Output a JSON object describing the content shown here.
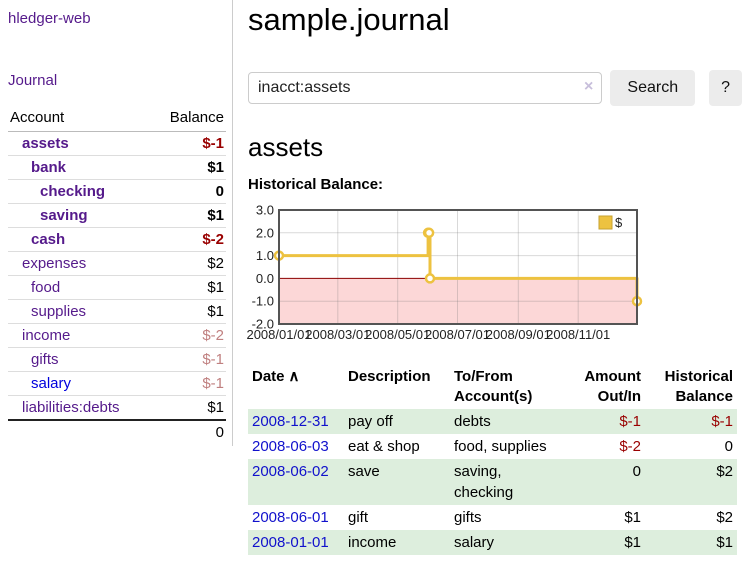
{
  "app": {
    "brand": "hledger-web",
    "nav_journal": "Journal"
  },
  "sidebar": {
    "headers": {
      "account": "Account",
      "balance": "Balance"
    },
    "accounts": [
      {
        "name": "assets",
        "balance": "$-1",
        "indent": 0,
        "bold": true,
        "unvisited": false
      },
      {
        "name": "bank",
        "balance": "$1",
        "indent": 1,
        "bold": true,
        "unvisited": false
      },
      {
        "name": "checking",
        "balance": "0",
        "indent": 2,
        "bold": true,
        "unvisited": false
      },
      {
        "name": "saving",
        "balance": "$1",
        "indent": 2,
        "bold": true,
        "unvisited": false
      },
      {
        "name": "cash",
        "balance": "$-2",
        "indent": 1,
        "bold": true,
        "unvisited": false
      },
      {
        "name": "expenses",
        "balance": "$2",
        "indent": 0,
        "bold": false,
        "unvisited": false
      },
      {
        "name": "food",
        "balance": "$1",
        "indent": 1,
        "bold": false,
        "unvisited": false
      },
      {
        "name": "supplies",
        "balance": "$1",
        "indent": 1,
        "bold": false,
        "unvisited": false
      },
      {
        "name": "income",
        "balance": "$-2",
        "indent": 0,
        "bold": false,
        "unvisited": false
      },
      {
        "name": "gifts",
        "balance": "$-1",
        "indent": 1,
        "bold": false,
        "unvisited": false
      },
      {
        "name": "salary",
        "balance": "$-1",
        "indent": 1,
        "bold": false,
        "unvisited": true
      },
      {
        "name": "liabilities:debts",
        "balance": "$1",
        "indent": 0,
        "bold": false,
        "unvisited": false
      }
    ],
    "total": "0"
  },
  "header": {
    "title": "sample.journal"
  },
  "search": {
    "value": "inacct:assets",
    "clear_icon": "×",
    "button_label": "Search",
    "help_label": "?"
  },
  "account_page": {
    "heading": "assets",
    "chart_label": "Historical Balance:"
  },
  "chart_data": {
    "type": "line",
    "step": true,
    "title": "Historical Balance:",
    "series": [
      {
        "name": "$",
        "color": "#edc240",
        "points": [
          [
            "2008-01-01",
            1
          ],
          [
            "2008-06-01",
            2
          ],
          [
            "2008-06-02",
            2
          ],
          [
            "2008-06-03",
            0
          ],
          [
            "2008-12-31",
            -1
          ]
        ]
      }
    ],
    "xlim": [
      "2008-01-01",
      "2008-12-31"
    ],
    "ylim": [
      -2,
      3
    ],
    "y_ticks": [
      "3.0",
      "2.0",
      "1.0",
      "0.0",
      "-1.0",
      "-2.0"
    ],
    "x_ticks": [
      {
        "pos": "2008-01-01",
        "label": "2008/01/01"
      },
      {
        "pos": "2008-03-01",
        "label": "2008/03/01"
      },
      {
        "pos": "2008-05-01",
        "label": "2008/05/01"
      },
      {
        "pos": "2008-07-01",
        "label": "2008/07/01"
      },
      {
        "pos": "2008-09-01",
        "label": "2008/09/01"
      },
      {
        "pos": "2008-11-01",
        "label": "2008/11/01"
      }
    ],
    "legend": {
      "position": "top-right",
      "label": "$"
    },
    "grid": true,
    "negative_region_color": "#fcd7d7",
    "zero_line_color": "#8b0000",
    "border_color": "#545454"
  },
  "register": {
    "headers": [
      "Date",
      "Description",
      "To/From Account(s)",
      "Amount Out/In",
      "Historical Balance"
    ],
    "sort_icon": "∧",
    "rows": [
      {
        "date": "2008-12-31",
        "description": "pay off",
        "accounts": "debts",
        "amount": "$-1",
        "balance": "$-1"
      },
      {
        "date": "2008-06-03",
        "description": "eat & shop",
        "accounts": "food, supplies",
        "amount": "$-2",
        "balance": "0"
      },
      {
        "date": "2008-06-02",
        "description": "save",
        "accounts": "saving, checking",
        "amount": "0",
        "balance": "$2"
      },
      {
        "date": "2008-06-01",
        "description": "gift",
        "accounts": "gifts",
        "amount": "$1",
        "balance": "$2"
      },
      {
        "date": "2008-01-01",
        "description": "income",
        "accounts": "salary",
        "amount": "$1",
        "balance": "$1"
      }
    ]
  }
}
